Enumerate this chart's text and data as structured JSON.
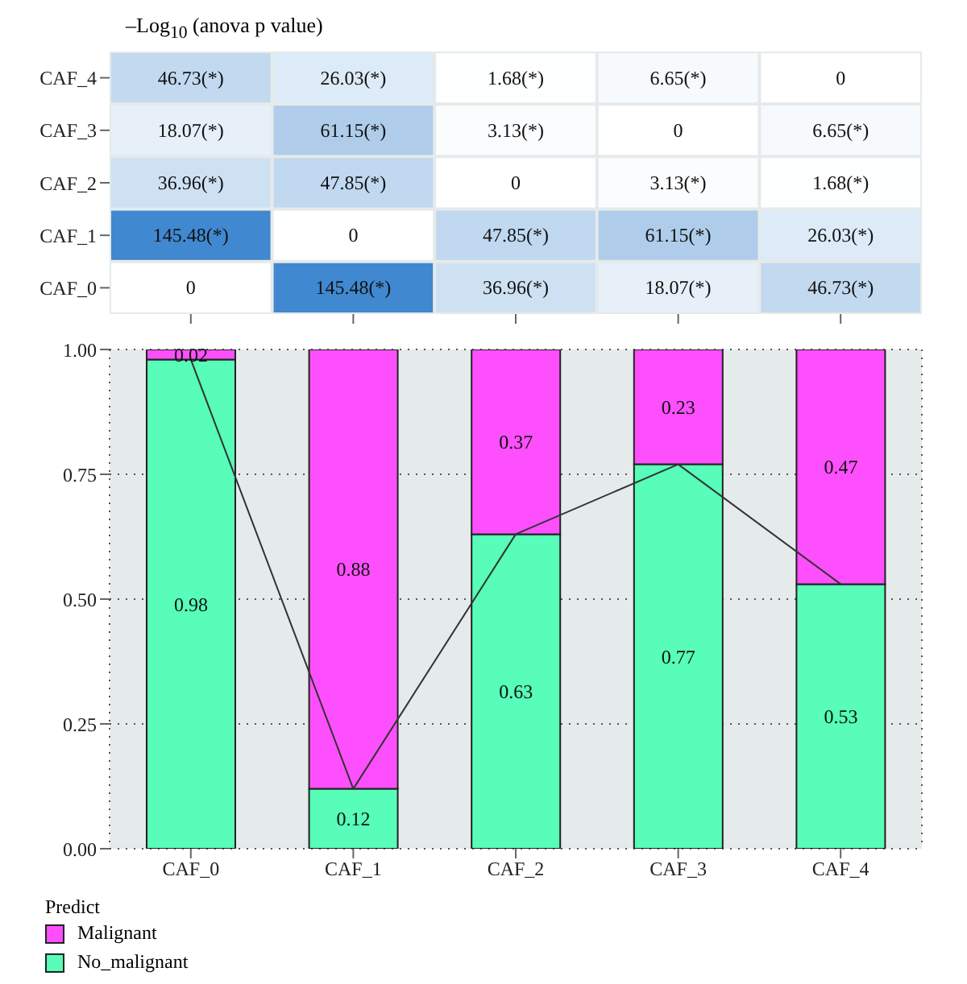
{
  "chart_data": [
    {
      "type": "heatmap",
      "title": "–Log$_{10}$ (anova p value)",
      "categories": [
        null,
        null,
        null,
        null,
        null
      ],
      "y_categories": [
        "CAF_4",
        "CAF_3",
        "CAF_2",
        "CAF_1",
        "CAF_0"
      ],
      "cells": [
        [
          46.73,
          26.03,
          1.68,
          6.65,
          0
        ],
        [
          18.07,
          61.15,
          3.13,
          0,
          6.65
        ],
        [
          36.96,
          47.85,
          0,
          3.13,
          1.68
        ],
        [
          145.48,
          0,
          47.85,
          61.15,
          26.03
        ],
        [
          0,
          145.48,
          36.96,
          18.07,
          46.73
        ]
      ],
      "cell_labels": [
        [
          "46.73(*)",
          "26.03(*)",
          "1.68(*)",
          "6.65(*)",
          "0"
        ],
        [
          "18.07(*)",
          "61.15(*)",
          "3.13(*)",
          "0",
          "6.65(*)"
        ],
        [
          "36.96(*)",
          "47.85(*)",
          "0",
          "3.13(*)",
          "1.68(*)"
        ],
        [
          "145.48(*)",
          "0",
          "47.85(*)",
          "61.15(*)",
          "26.03(*)"
        ],
        [
          "0",
          "145.48(*)",
          "36.96(*)",
          "18.07(*)",
          "46.73(*)"
        ]
      ],
      "tick_labels": "y"
    },
    {
      "type": "bar",
      "stacked": true,
      "categories": [
        "CAF_0",
        "CAF_1",
        "CAF_2",
        "CAF_3",
        "CAF_4"
      ],
      "legend_title": "Predict",
      "legend": "bottom",
      "grid": true,
      "data_labels": true,
      "ylim": [
        0,
        1
      ],
      "yticks": [
        {
          "value": 0,
          "label": "0.00"
        },
        {
          "value": 0.25,
          "label": "0.25"
        },
        {
          "value": 0.5,
          "label": "0.50"
        },
        {
          "value": 0.75,
          "label": "0.75"
        },
        {
          "value": 1,
          "label": "1.00"
        }
      ],
      "series": [
        {
          "name": "No_malignant",
          "color": "#57fdb8",
          "values": [
            0.98,
            0.12,
            0.63,
            0.77,
            0.53
          ]
        },
        {
          "name": "Malignant",
          "color": "#fd4ffd",
          "values": [
            0.02,
            0.88,
            0.37,
            0.23,
            0.47
          ]
        },
        {
          "type": "line",
          "color": "#333333",
          "values": [
            0.98,
            0.12,
            0.63,
            0.77,
            0.53
          ],
          "value_labels": [
            null,
            null,
            null,
            null,
            null
          ],
          "marker": "none"
        }
      ]
    }
  ]
}
